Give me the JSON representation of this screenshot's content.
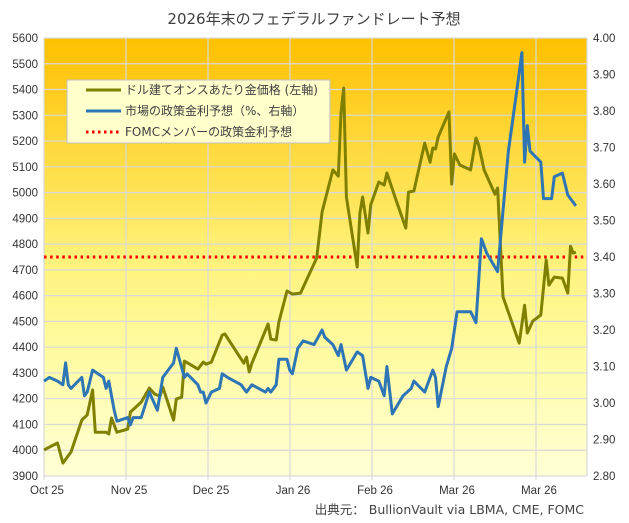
{
  "chart_data": {
    "type": "line",
    "title": "2026年末のフェデラルファンドレート予想",
    "source": "出典元： BullionVault  via LBMA, CME, FOMC",
    "x_tick_labels": [
      "Oct 25",
      "Nov 25",
      "Dec 25",
      "Jan 26",
      "Feb 26",
      "Mar 26",
      "Mar 26"
    ],
    "left_axis": {
      "ylim": [
        3900,
        5600
      ],
      "step": 100
    },
    "right_axis": {
      "ylim": [
        2.8,
        4.0
      ],
      "step": 0.1
    },
    "grid": true,
    "legend_position": "top-left",
    "series": [
      {
        "name": "ドル建てオンスあたり金価格 (左軸)",
        "axis": "left",
        "color": "#808000",
        "points": [
          [
            "2025-10-01",
            4001
          ],
          [
            "2025-10-03",
            4012
          ],
          [
            "2025-10-06",
            4028
          ],
          [
            "2025-10-08",
            3950
          ],
          [
            "2025-10-11",
            3993
          ],
          [
            "2025-10-15",
            4117
          ],
          [
            "2025-10-17",
            4137
          ],
          [
            "2025-10-19",
            4234
          ],
          [
            "2025-10-20",
            4070
          ],
          [
            "2025-10-24",
            4070
          ],
          [
            "2025-10-25",
            4063
          ],
          [
            "2025-10-26",
            4125
          ],
          [
            "2025-10-28",
            4070
          ],
          [
            "2025-11-01",
            4082
          ],
          [
            "2025-11-02",
            4148
          ],
          [
            "2025-11-06",
            4187
          ],
          [
            "2025-11-09",
            4241
          ],
          [
            "2025-11-11",
            4218
          ],
          [
            "2025-11-13",
            4210
          ],
          [
            "2025-11-14",
            4245
          ],
          [
            "2025-11-18",
            4117
          ],
          [
            "2025-11-19",
            4199
          ],
          [
            "2025-11-21",
            4206
          ],
          [
            "2025-11-22",
            4346
          ],
          [
            "2025-11-27",
            4315
          ],
          [
            "2025-11-29",
            4342
          ],
          [
            "2025-11-30",
            4334
          ],
          [
            "2025-12-02",
            4342
          ],
          [
            "2025-12-06",
            4447
          ],
          [
            "2025-12-07",
            4451
          ],
          [
            "2025-12-14",
            4338
          ],
          [
            "2025-12-15",
            4362
          ],
          [
            "2025-12-16",
            4304
          ],
          [
            "2025-12-17",
            4338
          ],
          [
            "2025-12-23",
            4490
          ],
          [
            "2025-12-24",
            4431
          ],
          [
            "2025-12-26",
            4428
          ],
          [
            "2025-12-27",
            4498
          ],
          [
            "2025-12-30",
            4618
          ],
          [
            "2026-01-01",
            4606
          ],
          [
            "2026-01-04",
            4610
          ],
          [
            "2026-01-10",
            4746
          ],
          [
            "2026-01-12",
            4925
          ],
          [
            "2026-01-16",
            5088
          ],
          [
            "2026-01-18",
            5064
          ],
          [
            "2026-01-19",
            5309
          ],
          [
            "2026-01-20",
            5406
          ],
          [
            "2026-01-21",
            4983
          ],
          [
            "2026-01-25",
            4711
          ],
          [
            "2026-01-26",
            4920
          ],
          [
            "2026-01-27",
            4983
          ],
          [
            "2026-01-29",
            4843
          ],
          [
            "2026-01-30",
            4952
          ],
          [
            "2026-02-02",
            5041
          ],
          [
            "2026-02-04",
            5029
          ],
          [
            "2026-02-05",
            5076
          ],
          [
            "2026-02-08",
            4983
          ],
          [
            "2026-02-12",
            4862
          ],
          [
            "2026-02-13",
            5002
          ],
          [
            "2026-02-15",
            5006
          ],
          [
            "2026-02-19",
            5192
          ],
          [
            "2026-02-21",
            5118
          ],
          [
            "2026-02-22",
            5173
          ],
          [
            "2026-02-23",
            5169
          ],
          [
            "2026-02-24",
            5216
          ],
          [
            "2026-02-28",
            5313
          ],
          [
            "2026-03-01",
            5033
          ],
          [
            "2026-03-02",
            5150
          ],
          [
            "2026-03-04",
            5107
          ],
          [
            "2026-03-08",
            5088
          ],
          [
            "2026-03-10",
            5212
          ],
          [
            "2026-03-11",
            5185
          ],
          [
            "2026-03-13",
            5088
          ],
          [
            "2026-03-17",
            4994
          ],
          [
            "2026-03-18",
            5018
          ],
          [
            "2026-03-20",
            4595
          ],
          [
            "2026-03-26",
            4416
          ],
          [
            "2026-03-28",
            4563
          ],
          [
            "2026-03-29",
            4455
          ],
          [
            "2026-03-31",
            4501
          ],
          [
            "2026-04-03",
            4525
          ],
          [
            "2026-04-05",
            4738
          ],
          [
            "2026-04-06",
            4641
          ],
          [
            "2026-04-08",
            4672
          ],
          [
            "2026-04-11",
            4668
          ],
          [
            "2026-04-13",
            4610
          ],
          [
            "2026-04-14",
            4792
          ],
          [
            "2026-04-15",
            4765
          ],
          [
            "2026-04-16",
            4769
          ]
        ]
      },
      {
        "name": "市場の政策金利予想（%、右軸）",
        "axis": "right",
        "color": "#2E75B6",
        "points": [
          [
            "2025-10-01",
            3.06
          ],
          [
            "2025-10-03",
            3.07
          ],
          [
            "2025-10-06",
            3.06
          ],
          [
            "2025-10-08",
            3.05
          ],
          [
            "2025-10-09",
            3.11
          ],
          [
            "2025-10-10",
            3.05
          ],
          [
            "2025-10-11",
            3.04
          ],
          [
            "2025-10-15",
            3.07
          ],
          [
            "2025-10-16",
            3.02
          ],
          [
            "2025-10-17",
            3.03
          ],
          [
            "2025-10-19",
            3.09
          ],
          [
            "2025-10-23",
            3.07
          ],
          [
            "2025-10-24",
            3.04
          ],
          [
            "2025-10-25",
            3.06
          ],
          [
            "2025-10-27",
            2.98
          ],
          [
            "2025-10-28",
            2.95
          ],
          [
            "2025-11-01",
            2.96
          ],
          [
            "2025-11-02",
            2.94
          ],
          [
            "2025-11-03",
            2.96
          ],
          [
            "2025-11-06",
            2.96
          ],
          [
            "2025-11-09",
            3.03
          ],
          [
            "2025-11-12",
            2.98
          ],
          [
            "2025-11-14",
            3.07
          ],
          [
            "2025-11-18",
            3.11
          ],
          [
            "2025-11-19",
            3.15
          ],
          [
            "2025-11-22",
            3.07
          ],
          [
            "2025-11-23",
            3.08
          ],
          [
            "2025-11-27",
            3.05
          ],
          [
            "2025-11-28",
            3.03
          ],
          [
            "2025-11-29",
            3.03
          ],
          [
            "2025-11-30",
            3.0
          ],
          [
            "2025-12-02",
            3.03
          ],
          [
            "2025-12-05",
            3.04
          ],
          [
            "2025-12-06",
            3.08
          ],
          [
            "2025-12-08",
            3.07
          ],
          [
            "2025-12-13",
            3.05
          ],
          [
            "2025-12-15",
            3.03
          ],
          [
            "2025-12-16",
            3.04
          ],
          [
            "2025-12-17",
            3.05
          ],
          [
            "2025-12-22",
            3.03
          ],
          [
            "2025-12-23",
            3.04
          ],
          [
            "2025-12-24",
            3.03
          ],
          [
            "2025-12-26",
            3.05
          ],
          [
            "2025-12-27",
            3.12
          ],
          [
            "2025-12-30",
            3.12
          ],
          [
            "2025-12-31",
            3.09
          ],
          [
            "2026-01-01",
            3.08
          ],
          [
            "2026-01-03",
            3.15
          ],
          [
            "2026-01-05",
            3.17
          ],
          [
            "2026-01-09",
            3.16
          ],
          [
            "2026-01-12",
            3.2
          ],
          [
            "2026-01-13",
            3.18
          ],
          [
            "2026-01-16",
            3.16
          ],
          [
            "2026-01-18",
            3.13
          ],
          [
            "2026-01-19",
            3.16
          ],
          [
            "2026-01-21",
            3.09
          ],
          [
            "2026-01-25",
            3.14
          ],
          [
            "2026-01-27",
            3.13
          ],
          [
            "2026-01-29",
            3.04
          ],
          [
            "2026-01-30",
            3.07
          ],
          [
            "2026-02-02",
            3.06
          ],
          [
            "2026-02-04",
            3.02
          ],
          [
            "2026-02-05",
            3.1
          ],
          [
            "2026-02-07",
            2.97
          ],
          [
            "2026-02-11",
            3.02
          ],
          [
            "2026-02-14",
            3.04
          ],
          [
            "2026-02-15",
            3.06
          ],
          [
            "2026-02-19",
            3.03
          ],
          [
            "2026-02-22",
            3.09
          ],
          [
            "2026-02-23",
            3.07
          ],
          [
            "2026-02-24",
            2.99
          ],
          [
            "2026-02-27",
            3.1
          ],
          [
            "2026-03-01",
            3.15
          ],
          [
            "2026-03-03",
            3.25
          ],
          [
            "2026-03-08",
            3.25
          ],
          [
            "2026-03-10",
            3.22
          ],
          [
            "2026-03-12",
            3.45
          ],
          [
            "2026-03-14",
            3.41
          ],
          [
            "2026-03-18",
            3.36
          ],
          [
            "2026-03-21",
            3.61
          ],
          [
            "2026-03-22",
            3.69
          ],
          [
            "2026-03-25",
            3.85
          ],
          [
            "2026-03-27",
            3.96
          ],
          [
            "2026-03-28",
            3.66
          ],
          [
            "2026-03-29",
            3.76
          ],
          [
            "2026-03-30",
            3.69
          ],
          [
            "2026-04-03",
            3.66
          ],
          [
            "2026-04-04",
            3.56
          ],
          [
            "2026-04-05",
            3.56
          ],
          [
            "2026-04-07",
            3.56
          ],
          [
            "2026-04-08",
            3.62
          ],
          [
            "2026-04-11",
            3.63
          ],
          [
            "2026-04-13",
            3.57
          ],
          [
            "2026-04-16",
            3.54
          ]
        ]
      },
      {
        "name": "FOMCメンバーの政策金利予想",
        "axis": "right",
        "color": "#FF0000",
        "style": "dotted",
        "value": 3.4
      }
    ]
  }
}
